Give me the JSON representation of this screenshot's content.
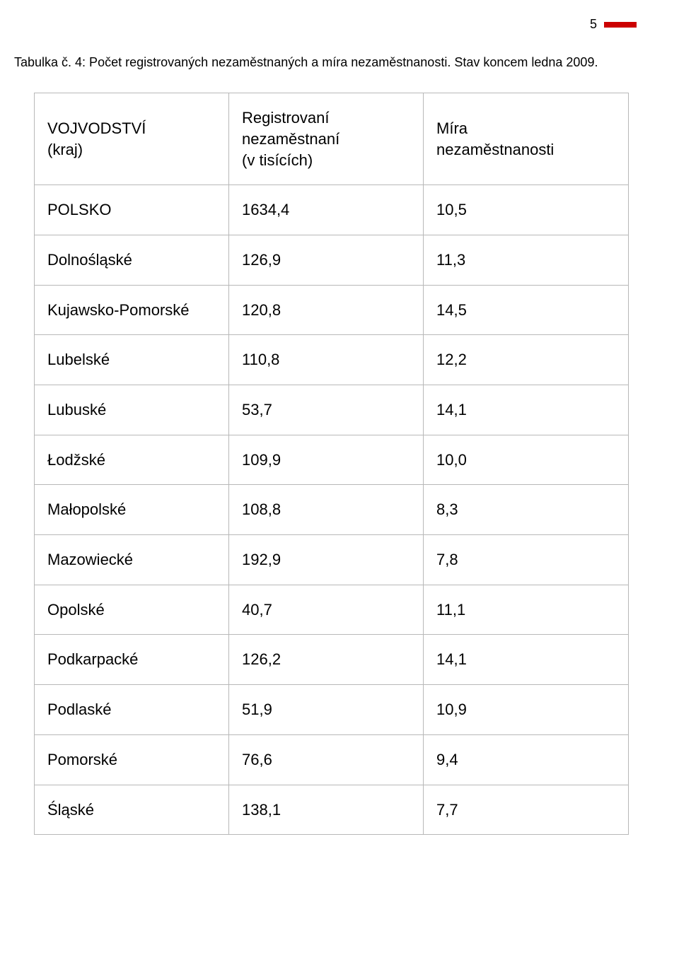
{
  "page_number": "5",
  "caption": "Tabulka č. 4: Počet registrovaných nezaměstnaných a míra nezaměstnanosti. Stav koncem ledna 2009.",
  "accent_color": "#cc0000",
  "border_color": "#b8b8b8",
  "table": {
    "columns": [
      "VOJVODSTVÍ\n(kraj)",
      "Registrovaní\nnezaměstnaní\n(v tisících)",
      "Míra\nnezaměstnanosti"
    ],
    "rows": [
      [
        "POLSKO",
        "1634,4",
        "10,5"
      ],
      [
        "Dolnośląské",
        "126,9",
        "11,3"
      ],
      [
        "Kujawsko-Pomorské",
        "120,8",
        "14,5"
      ],
      [
        "Lubelské",
        "110,8",
        "12,2"
      ],
      [
        "Lubuské",
        "53,7",
        "14,1"
      ],
      [
        "Łodžské",
        "109,9",
        "10,0"
      ],
      [
        "Małopolské",
        "108,8",
        "8,3"
      ],
      [
        "Mazowiecké",
        "192,9",
        "7,8"
      ],
      [
        "Opolské",
        "40,7",
        "11,1"
      ],
      [
        "Podkarpacké",
        "126,2",
        "14,1"
      ],
      [
        "Podlaské",
        "51,9",
        "10,9"
      ],
      [
        "Pomorské",
        "76,6",
        "9,4"
      ],
      [
        "Śląské",
        "138,1",
        "7,7"
      ]
    ]
  }
}
